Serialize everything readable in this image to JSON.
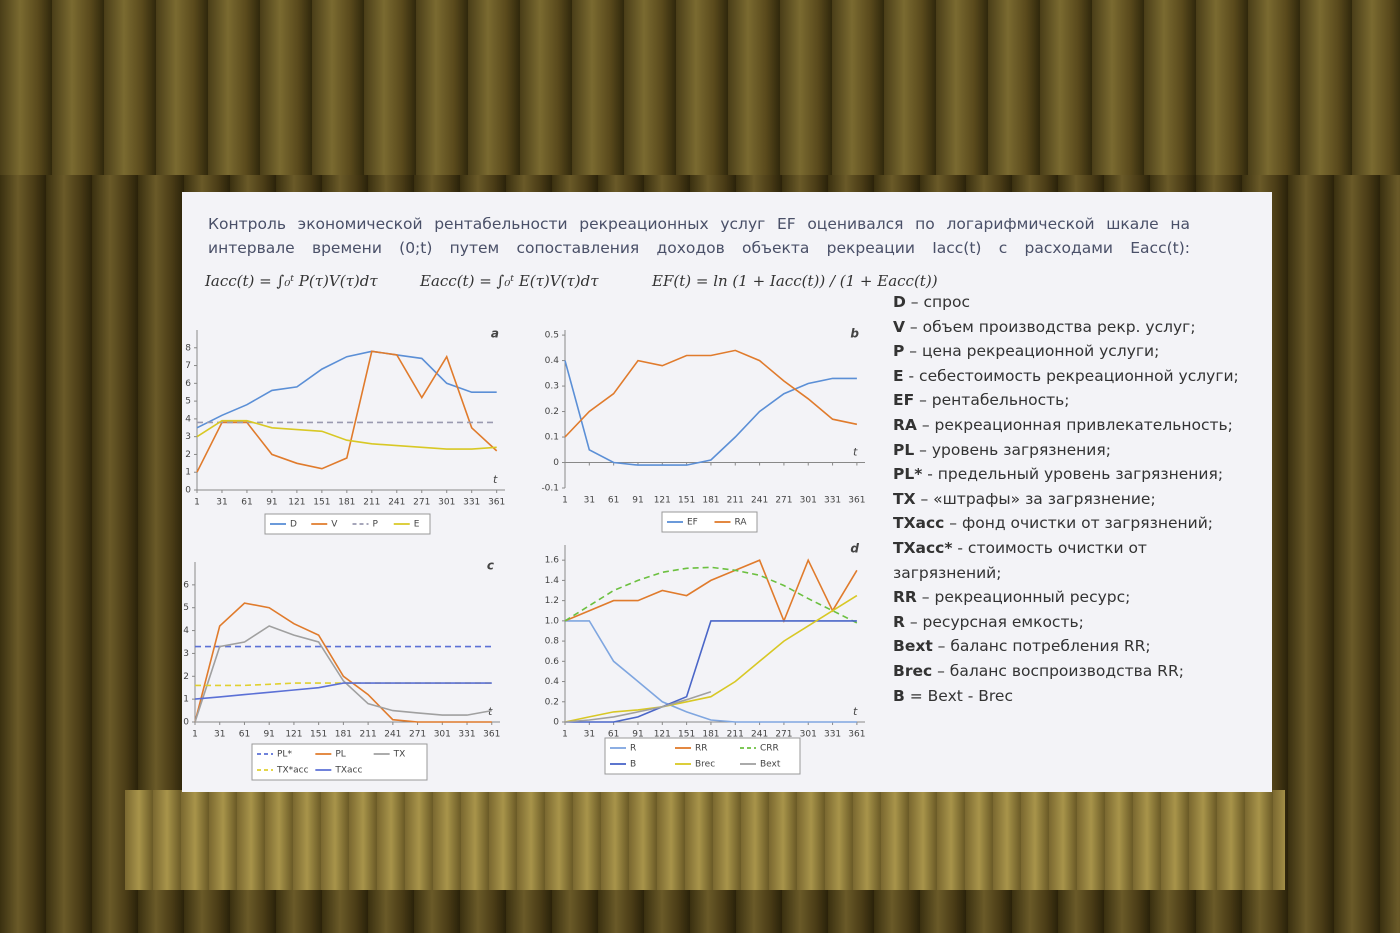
{
  "slide": {
    "intro": "Контроль экономической рентабельности рекреационных услуг EF оценивался по логарифмической шкале на интервале времени (0;t) путем сопоставления доходов объекта рекреации Iacc(t) с расходами Eacc(t):",
    "formulas": [
      "Iacc(t) = ∫₀ᵗ P(τ)V(τ)dτ",
      "Eacc(t) = ∫₀ᵗ E(τ)V(τ)dτ",
      "EF(t) = ln (1 + Iacc(t)) / (1 + Eacc(t))"
    ],
    "definitions": [
      {
        "term": "D",
        "text": " – спрос"
      },
      {
        "term": "V",
        "text": " – объем производства рекр. услуг;"
      },
      {
        "term": "P",
        "text": " – цена рекреационной услуги;"
      },
      {
        "term": "E",
        "text": " - себестоимость рекреационной услуги;"
      },
      {
        "term": "EF",
        "text": " – рентабельность;"
      },
      {
        "term": "RA",
        "text": " – рекреационная привлекательность;"
      },
      {
        "term": "PL",
        "text": " – уровень загрязнения;"
      },
      {
        "term": "PL*",
        "text": " - предельный уровень загрязнения;"
      },
      {
        "term": "TX",
        "text": " – «штрафы» за загрязнение;"
      },
      {
        "term": "TXacc",
        "text": " – фонд очистки от загрязнений;"
      },
      {
        "term": "TXacc*",
        "text": " - стоимость очистки от загрязнений;"
      },
      {
        "term": "RR",
        "text": " –  рекреационный ресурс;"
      },
      {
        "term": "R",
        "text": " – ресурсная емкость;"
      },
      {
        "term": "Bext",
        "text": " – баланс потребления RR;"
      },
      {
        "term": "Brec",
        "text": " – баланс воспроизводства RR;"
      },
      {
        "term": "B",
        "text": " = Bext - Brec"
      }
    ]
  },
  "chart_data": [
    {
      "type": "line",
      "panel_label": "a",
      "xlabel": "t",
      "x": [
        1,
        31,
        61,
        91,
        121,
        151,
        181,
        211,
        241,
        271,
        301,
        331,
        361
      ],
      "xlim": [
        1,
        371
      ],
      "xticks": [
        1,
        31,
        61,
        91,
        121,
        151,
        181,
        211,
        241,
        271,
        301,
        331,
        361
      ],
      "ylim": [
        0,
        9
      ],
      "yticks": [
        0,
        1,
        2,
        3,
        4,
        5,
        6,
        7,
        8
      ],
      "series": [
        {
          "name": "D",
          "color": "#5b8fd6",
          "dash": false,
          "values": [
            3.5,
            4.2,
            4.8,
            5.6,
            5.8,
            6.8,
            7.5,
            7.8,
            7.6,
            7.4,
            6,
            5.5,
            5.5
          ]
        },
        {
          "name": "V",
          "color": "#e07b2c",
          "dash": false,
          "values": [
            1,
            3.8,
            3.8,
            2,
            1.5,
            1.2,
            1.8,
            7.8,
            7.6,
            5.2,
            7.5,
            3.5,
            2.2
          ]
        },
        {
          "name": "P",
          "color": "#9a9ab0",
          "dash": true,
          "values": [
            3.8,
            3.8,
            3.8,
            3.8,
            3.8,
            3.8,
            3.8,
            3.8,
            3.8,
            3.8,
            3.8,
            3.8,
            3.8
          ]
        },
        {
          "name": "E",
          "color": "#d8c825",
          "dash": false,
          "values": [
            3,
            3.9,
            3.9,
            3.5,
            3.4,
            3.3,
            2.8,
            2.6,
            2.5,
            2.4,
            2.3,
            2.3,
            2.4
          ]
        }
      ]
    },
    {
      "type": "line",
      "panel_label": "b",
      "xlabel": "t",
      "x": [
        1,
        31,
        61,
        91,
        121,
        151,
        181,
        211,
        241,
        271,
        301,
        331,
        361
      ],
      "xlim": [
        1,
        371
      ],
      "xticks": [
        1,
        31,
        61,
        91,
        121,
        151,
        181,
        211,
        241,
        271,
        301,
        331,
        361
      ],
      "ylim": [
        -0.1,
        0.52
      ],
      "yticks": [
        -0.1,
        0,
        0.1,
        0.2,
        0.3,
        0.4,
        0.5
      ],
      "series": [
        {
          "name": "EF",
          "color": "#5b8fd6",
          "dash": false,
          "values": [
            0.4,
            0.05,
            0,
            -0.01,
            -0.01,
            -0.01,
            0.01,
            0.1,
            0.2,
            0.27,
            0.31,
            0.33,
            0.33
          ]
        },
        {
          "name": "RA",
          "color": "#e07b2c",
          "dash": false,
          "values": [
            0.1,
            0.2,
            0.27,
            0.4,
            0.38,
            0.42,
            0.42,
            0.44,
            0.4,
            0.32,
            0.25,
            0.17,
            0.15
          ]
        }
      ]
    },
    {
      "type": "line",
      "panel_label": "c",
      "xlabel": "t",
      "x": [
        1,
        31,
        61,
        91,
        121,
        151,
        181,
        211,
        241,
        271,
        301,
        331,
        361
      ],
      "xlim": [
        1,
        371
      ],
      "xticks": [
        1,
        31,
        61,
        91,
        121,
        151,
        181,
        211,
        241,
        271,
        301,
        331,
        361
      ],
      "ylim": [
        0,
        7
      ],
      "yticks": [
        0,
        1,
        2,
        3,
        4,
        5,
        6
      ],
      "series": [
        {
          "name": "PL*",
          "color": "#5b70d6",
          "dash": true,
          "values": [
            3.3,
            3.3,
            3.3,
            3.3,
            3.3,
            3.3,
            3.3,
            3.3,
            3.3,
            3.3,
            3.3,
            3.3,
            3.3
          ]
        },
        {
          "name": "PL",
          "color": "#e07b2c",
          "dash": false,
          "values": [
            0,
            4.2,
            5.2,
            5,
            4.3,
            3.8,
            2,
            1.2,
            0.1,
            0,
            0,
            0,
            0
          ]
        },
        {
          "name": "TX",
          "color": "#a0a0a0",
          "dash": false,
          "values": [
            0,
            3.3,
            3.5,
            4.2,
            3.8,
            3.5,
            1.8,
            0.8,
            0.5,
            0.4,
            0.3,
            0.3,
            0.5
          ]
        },
        {
          "name": "TX*acc",
          "color": "#e0d030",
          "dash": true,
          "values": [
            1.6,
            1.6,
            1.6,
            1.65,
            1.7,
            1.7,
            1.7,
            1.7,
            1.7,
            1.7,
            1.7,
            1.7,
            1.7
          ]
        },
        {
          "name": "TXacc",
          "color": "#5b70d6",
          "dash": false,
          "values": [
            1,
            1.1,
            1.2,
            1.3,
            1.4,
            1.5,
            1.7,
            1.7,
            1.7,
            1.7,
            1.7,
            1.7,
            1.7
          ]
        }
      ]
    },
    {
      "type": "line",
      "panel_label": "d",
      "xlabel": "t",
      "x": [
        1,
        31,
        61,
        91,
        121,
        151,
        181,
        211,
        241,
        271,
        301,
        331,
        361
      ],
      "xlim": [
        1,
        371
      ],
      "xticks": [
        1,
        31,
        61,
        91,
        121,
        151,
        181,
        211,
        241,
        271,
        301,
        331,
        361
      ],
      "ylim": [
        0,
        1.75
      ],
      "yticks": [
        0,
        0.2,
        0.4,
        0.6,
        0.8,
        {
          "value": 1,
          "label": "1.0"
        },
        1.2,
        1.4,
        1.6
      ],
      "series": [
        {
          "name": "R",
          "color": "#7fa6e0",
          "dash": false,
          "values": [
            1,
            1,
            0.6,
            0.4,
            0.2,
            0.1,
            0.02,
            0,
            0,
            0,
            0,
            0,
            0
          ]
        },
        {
          "name": "RR",
          "color": "#e07b2c",
          "dash": false,
          "values": [
            1,
            1.1,
            1.2,
            1.2,
            1.3,
            1.25,
            1.4,
            1.5,
            1.6,
            1,
            1.6,
            1.1,
            1.5
          ]
        },
        {
          "name": "CRR",
          "color": "#6cc040",
          "dash": true,
          "values": [
            1,
            1.15,
            1.3,
            1.4,
            1.48,
            1.52,
            1.53,
            1.5,
            1.45,
            1.35,
            1.22,
            1.1,
            0.98
          ]
        },
        {
          "name": "B",
          "color": "#4a66c8",
          "dash": false,
          "values": [
            0,
            0,
            0,
            0.05,
            0.15,
            0.25,
            1,
            1,
            1,
            1,
            1,
            1,
            1
          ]
        },
        {
          "name": "Brec",
          "color": "#d8c825",
          "dash": false,
          "values": [
            0,
            0.05,
            0.1,
            0.12,
            0.15,
            0.2,
            0.25,
            0.4,
            0.6,
            0.8,
            0.95,
            1.1,
            1.25
          ]
        },
        {
          "name": "Bext",
          "color": "#a0a0a0",
          "dash": false,
          "values": [
            0,
            0.02,
            0.05,
            0.1,
            0.15,
            0.22,
            0.3,
            null,
            null,
            null,
            null,
            null,
            null
          ]
        }
      ]
    }
  ]
}
